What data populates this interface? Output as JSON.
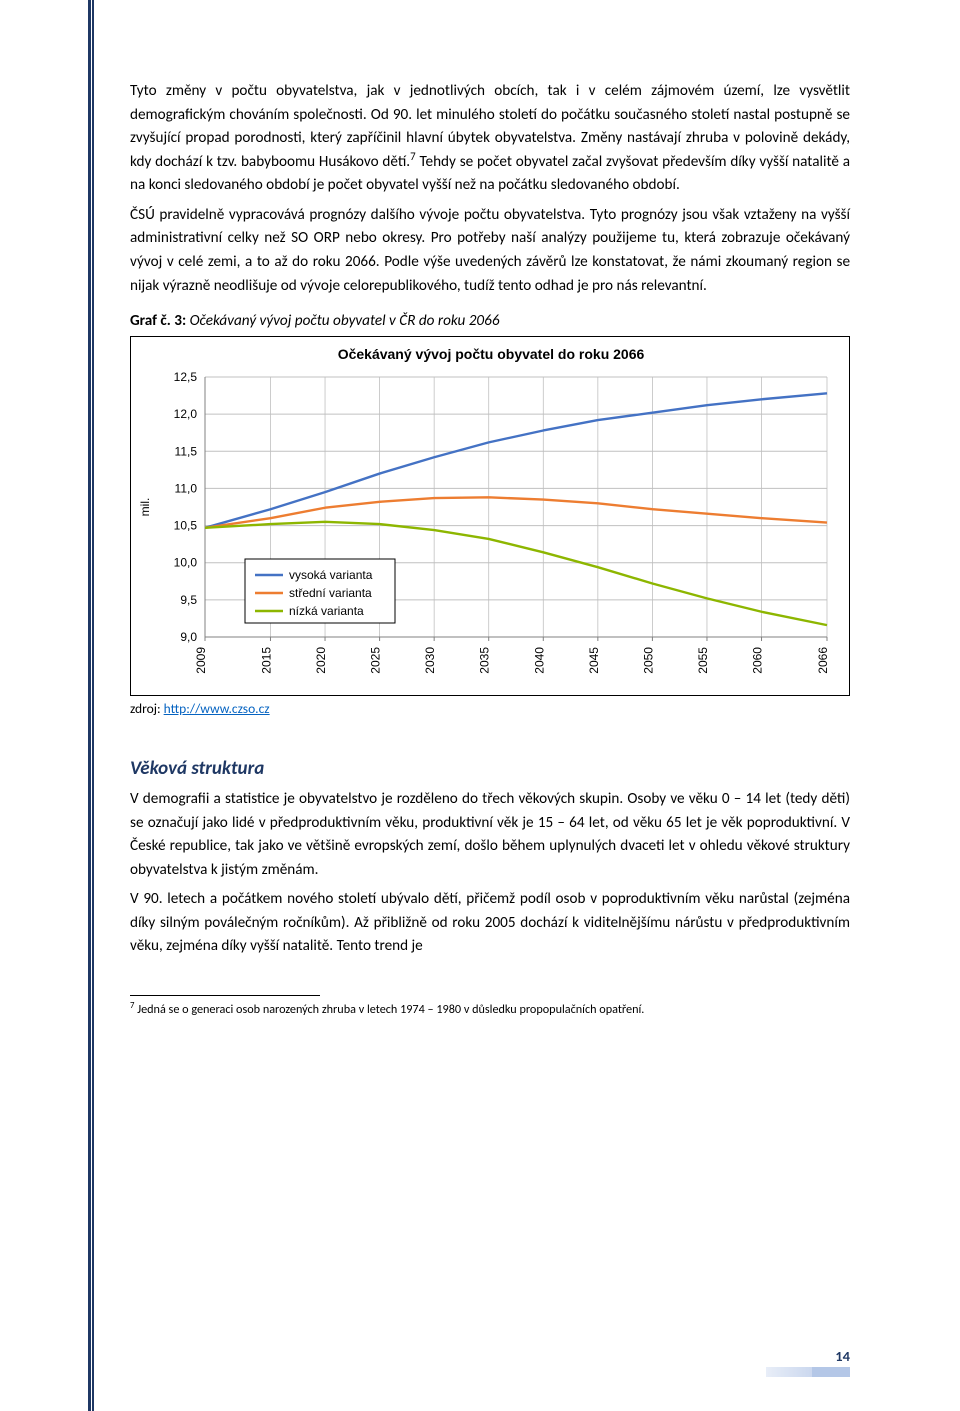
{
  "body": {
    "p1": "Tyto změny v počtu obyvatelstva, jak v jednotlivých obcích, tak i v celém zájmovém území, lze vysvětlit demografickým chováním společnosti. Od 90. let minulého století do počátku současného století nastal postupně se zvyšující propad porodnosti, který zapříčinil hlavní úbytek obyvatelstva. Změny nastávají zhruba v polovině dekády, kdy dochází k tzv. babyboomu Husákovo dětí.",
    "p1sup": "7",
    "p1b": " Tehdy se počet obyvatel začal zvyšovat především díky vyšší natalitě a na konci sledovaného období je počet obyvatel vyšší než na počátku sledovaného období.",
    "p2": "ČSÚ pravidelně vypracovává prognózy dalšího vývoje počtu obyvatelstva. Tyto prognózy jsou však vztaženy na vyšší administrativní celky než SO ORP nebo okresy. Pro potřeby naší analýzy použijeme tu, která zobrazuje očekávaný vývoj v celé zemi, a to až do roku 2066. Podle výše uvedených závěrů lze konstatovat, že námi zkoumaný region se nijak výrazně neodlišuje od vývoje celorepublikového, tudíž tento odhad je pro nás relevantní.",
    "graf_label_bold": "Graf č. 3:",
    "graf_label_ital": " Očekávaný vývoj počtu obyvatel v ČR do roku 2066",
    "zdroj_prefix": "zdroj: ",
    "zdroj_link_text": "http://www.czso.cz",
    "section_head": "Věková struktura",
    "p3": "V demografii a statistice je obyvatelstvo je rozděleno do třech věkových skupin. Osoby ve věku 0 – 14 let (tedy děti) se označují jako lidé v předproduktivním věku, produktivní věk je 15 – 64 let, od věku 65 let je věk poproduktivní. V České republice, tak jako ve většině evropských zemí, došlo během uplynulých dvaceti let v ohledu věkové struktury obyvatelstva k jistým změnám.",
    "p4": "V 90. letech a počátkem nového století ubývalo dětí, přičemž podíl osob v poproduktivním věku narůstal (zejména díky silným poválečným ročníkům). Až přibližně od roku 2005 dochází k viditelnějšímu nárůstu v předproduktivním věku, zejména díky vyšší natalitě. Tento trend je",
    "footnote_num": "7",
    "footnote": " Jedná se o generaci osob narozených zhruba v letech 1974 – 1980 v důsledku propopulačních opatření.",
    "page_number": "14"
  },
  "chart": {
    "title": "Očekávaný vývoj počtu obyvatel do roku 2066",
    "y_label": "mil.",
    "y_ticks": [
      "9,0",
      "9,5",
      "10,0",
      "10,5",
      "11,0",
      "11,5",
      "12,0",
      "12,5"
    ],
    "y_min": 9.0,
    "y_max": 12.5,
    "x_ticks": [
      "2009",
      "2015",
      "2020",
      "2025",
      "2030",
      "2035",
      "2040",
      "2045",
      "2050",
      "2055",
      "2060",
      "2066"
    ],
    "x_values": [
      2009,
      2015,
      2020,
      2025,
      2030,
      2035,
      2040,
      2045,
      2050,
      2055,
      2060,
      2066
    ],
    "series": [
      {
        "name": "vysoká varianta",
        "color": "#4472c4",
        "stroke_width": 2.4,
        "values": [
          10.47,
          10.72,
          10.95,
          11.2,
          11.42,
          11.62,
          11.78,
          11.92,
          12.02,
          12.12,
          12.2,
          12.28
        ]
      },
      {
        "name": "střední varianta",
        "color": "#ed7d31",
        "stroke_width": 2.4,
        "values": [
          10.47,
          10.6,
          10.74,
          10.82,
          10.87,
          10.88,
          10.85,
          10.8,
          10.72,
          10.66,
          10.6,
          10.54
        ]
      },
      {
        "name": "nízká varianta",
        "color": "#8db600",
        "stroke_width": 2.4,
        "values": [
          10.47,
          10.52,
          10.55,
          10.52,
          10.44,
          10.32,
          10.14,
          9.94,
          9.72,
          9.52,
          9.34,
          9.16
        ]
      }
    ],
    "legend_border": "#000000",
    "grid_line_color": "#c0c0c0",
    "axis_color": "#808080",
    "drop_line_color": "#bfbfbf",
    "background_color": "#ffffff",
    "title_fontsize": 14,
    "tick_fontsize": 12
  }
}
